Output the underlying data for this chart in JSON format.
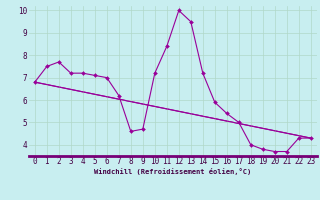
{
  "xlabel": "Windchill (Refroidissement éolien,°C)",
  "background_color": "#c8eef0",
  "line_color": "#990099",
  "grid_color": "#b0d8c8",
  "x_data": [
    0,
    1,
    2,
    3,
    4,
    5,
    6,
    7,
    8,
    9,
    10,
    11,
    12,
    13,
    14,
    15,
    16,
    17,
    18,
    19,
    20,
    21,
    22,
    23
  ],
  "y_data": [
    6.8,
    7.5,
    7.7,
    7.2,
    7.2,
    7.1,
    7.0,
    6.2,
    4.6,
    4.7,
    7.2,
    8.4,
    10.0,
    9.5,
    7.2,
    5.9,
    5.4,
    5.0,
    4.0,
    3.8,
    3.7,
    3.7,
    4.3,
    4.3
  ],
  "ylim": [
    3.5,
    10.2
  ],
  "xlim": [
    -0.5,
    23.5
  ],
  "yticks": [
    4,
    5,
    6,
    7,
    8,
    9,
    10
  ],
  "xticks": [
    0,
    1,
    2,
    3,
    4,
    5,
    6,
    7,
    8,
    9,
    10,
    11,
    12,
    13,
    14,
    15,
    16,
    17,
    18,
    19,
    20,
    21,
    22,
    23
  ],
  "marker": "D",
  "marker_size": 2.0,
  "line_width": 0.8,
  "trend_x_start": 0,
  "trend_x_end": 23,
  "trend_y_start": 6.8,
  "trend_y_end": 4.3,
  "xlabel_fontsize": 5.0,
  "tick_fontsize": 5.5,
  "axis_label_color": "#440044"
}
